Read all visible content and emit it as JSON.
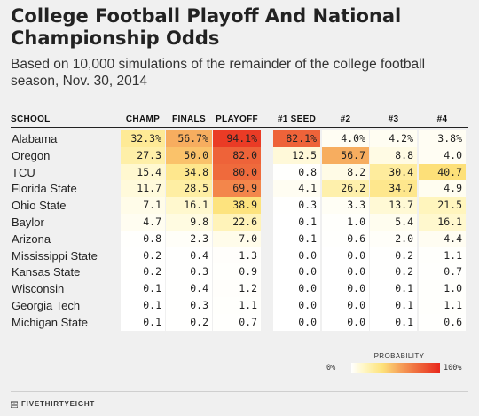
{
  "title": "College Football Playoff And National Championship Odds",
  "subtitle": "Based on 10,000 simulations of the remainder of the college football season, Nov. 30, 2014",
  "footer": "FIVETHIRTYEIGHT",
  "legend": {
    "title": "PROBABILITY",
    "low": "0%",
    "high": "100%"
  },
  "chart_data": {
    "type": "heatmap",
    "columns": [
      "SCHOOL",
      "CHAMP",
      "FINALS",
      "PLAYOFF",
      "#1 SEED",
      "#2",
      "#3",
      "#4"
    ],
    "rows": [
      {
        "school": "Alabama",
        "values": [
          "32.3%",
          "56.7%",
          "94.1%",
          "82.1%",
          "4.0%",
          "4.2%",
          "3.8%"
        ]
      },
      {
        "school": "Oregon",
        "values": [
          "27.3",
          "50.0",
          "82.0",
          "12.5",
          "56.7",
          "8.8",
          "4.0"
        ]
      },
      {
        "school": "TCU",
        "values": [
          "15.4",
          "34.8",
          "80.0",
          "0.8",
          "8.2",
          "30.4",
          "40.7"
        ]
      },
      {
        "school": "Florida State",
        "values": [
          "11.7",
          "28.5",
          "69.9",
          "4.1",
          "26.2",
          "34.7",
          "4.9"
        ]
      },
      {
        "school": "Ohio State",
        "values": [
          "7.1",
          "16.1",
          "38.9",
          "0.3",
          "3.3",
          "13.7",
          "21.5"
        ]
      },
      {
        "school": "Baylor",
        "values": [
          "4.7",
          "9.8",
          "22.6",
          "0.1",
          "1.0",
          "5.4",
          "16.1"
        ]
      },
      {
        "school": "Arizona",
        "values": [
          "0.8",
          "2.3",
          "7.0",
          "0.1",
          "0.6",
          "2.0",
          "4.4"
        ]
      },
      {
        "school": "Mississippi State",
        "values": [
          "0.2",
          "0.4",
          "1.3",
          "0.0",
          "0.0",
          "0.2",
          "1.1"
        ]
      },
      {
        "school": "Kansas State",
        "values": [
          "0.2",
          "0.3",
          "0.9",
          "0.0",
          "0.0",
          "0.2",
          "0.7"
        ]
      },
      {
        "school": "Wisconsin",
        "values": [
          "0.1",
          "0.4",
          "1.2",
          "0.0",
          "0.0",
          "0.1",
          "1.0"
        ]
      },
      {
        "school": "Georgia Tech",
        "values": [
          "0.1",
          "0.3",
          "1.1",
          "0.0",
          "0.0",
          "0.1",
          "1.1"
        ]
      },
      {
        "school": "Michigan State",
        "values": [
          "0.1",
          "0.2",
          "0.7",
          "0.0",
          "0.0",
          "0.1",
          "0.6"
        ]
      }
    ],
    "value_range": [
      0,
      100
    ],
    "colors": [
      "#ffffff",
      "#fff6c2",
      "#fde27a",
      "#f6a25a",
      "#ef6a3c",
      "#e8281c"
    ]
  }
}
